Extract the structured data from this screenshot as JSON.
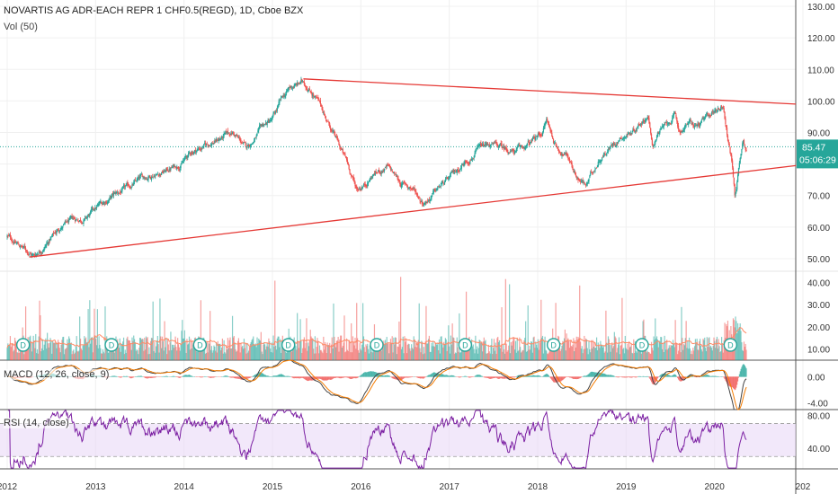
{
  "header": {
    "symbol_line": "NOVARTIS AG ADR-EACH REPR 1 CHF0.5(REGD), 1D, Cboe BZX",
    "volume_label": "Vol (50)"
  },
  "price_badges": {
    "last_price": "85.47",
    "countdown": "05:06:29"
  },
  "colors": {
    "up": "#26a69a",
    "down": "#ef5350",
    "trendline": "#e53935",
    "macd_line": "#444444",
    "signal_line": "#f57c00",
    "rsi_line": "#7b1fa2",
    "rsi_band": "#ead9f7",
    "dividend_badge": "#26a69a",
    "last_price_badge": "#26a69a"
  },
  "panes": {
    "macd_label": "MACD (12, 26, close, 9)",
    "rsi_label": "RSI (14, close)"
  },
  "dividend_marker_label": "D",
  "dividend_years": [
    2012.2,
    2013.2,
    2014.2,
    2015.2,
    2016.2,
    2017.2,
    2018.2,
    2019.2,
    2020.2
  ],
  "chart_data": [
    {
      "type": "line",
      "name": "price",
      "x": [
        2012.0,
        2012.15,
        2012.3,
        2012.45,
        2012.6,
        2012.75,
        2012.9,
        2013.05,
        2013.2,
        2013.35,
        2013.5,
        2013.65,
        2013.8,
        2013.95,
        2014.1,
        2014.25,
        2014.4,
        2014.55,
        2014.7,
        2014.8,
        2014.9,
        2015.0,
        2015.1,
        2015.2,
        2015.35,
        2015.45,
        2015.55,
        2015.65,
        2015.75,
        2015.85,
        2015.95,
        2016.05,
        2016.15,
        2016.3,
        2016.45,
        2016.6,
        2016.7,
        2016.8,
        2016.9,
        2017.0,
        2017.15,
        2017.3,
        2017.45,
        2017.6,
        2017.75,
        2017.9,
        2018.05,
        2018.1,
        2018.2,
        2018.35,
        2018.45,
        2018.55,
        2018.7,
        2018.8,
        2018.95,
        2019.05,
        2019.15,
        2019.25,
        2019.3,
        2019.35,
        2019.45,
        2019.55,
        2019.6,
        2019.7,
        2019.8,
        2019.9,
        2020.0,
        2020.1,
        2020.15,
        2020.2,
        2020.23,
        2020.27,
        2020.32,
        2020.36
      ],
      "y": [
        57,
        54,
        51,
        55,
        60,
        62,
        63,
        67,
        70,
        72,
        75,
        77,
        78,
        80,
        84,
        86,
        88,
        90,
        85,
        88,
        92,
        94,
        100,
        104,
        106,
        103,
        98,
        92,
        86,
        80,
        72,
        74,
        77,
        79,
        74,
        72,
        68,
        70,
        73,
        75,
        80,
        84,
        86,
        85,
        84,
        86,
        90,
        94,
        86,
        82,
        76,
        73,
        82,
        85,
        89,
        90,
        93,
        96,
        84,
        90,
        92,
        95,
        90,
        93,
        92,
        94,
        97,
        99,
        88,
        80,
        70,
        78,
        88,
        85.47
      ],
      "xlabel": "",
      "ylabel": "",
      "x_ticks": [
        "2012",
        "2013",
        "2014",
        "2015",
        "2016",
        "2017",
        "2018",
        "2019",
        "2020",
        "202"
      ],
      "y_ticks": [
        "50.00",
        "60.00",
        "70.00",
        "80.00",
        "90.00",
        "100.00",
        "110.00",
        "120.00",
        "130.00"
      ],
      "ylim": [
        46,
        132
      ],
      "last_value": 85.47
    },
    {
      "type": "line",
      "name": "trendlines",
      "series": [
        {
          "x": [
            2015.35,
            2021.0
          ],
          "y": [
            107,
            99
          ]
        },
        {
          "x": [
            2012.25,
            2021.0
          ],
          "y": [
            50.5,
            79.5
          ]
        }
      ]
    },
    {
      "type": "bar",
      "name": "volume",
      "y_ticks": [
        "10.00",
        "20.00",
        "30.00",
        "40.00"
      ],
      "ylim": [
        5,
        45
      ],
      "typical": 14
    },
    {
      "type": "line",
      "name": "macd",
      "y_ticks": [
        "0.00",
        "-4.00"
      ],
      "ylim": [
        -5,
        2.5
      ]
    },
    {
      "type": "line",
      "name": "rsi",
      "y_ticks": [
        "40.00",
        "80.00"
      ],
      "ylim": [
        15,
        87
      ],
      "band": [
        30,
        70
      ]
    }
  ]
}
